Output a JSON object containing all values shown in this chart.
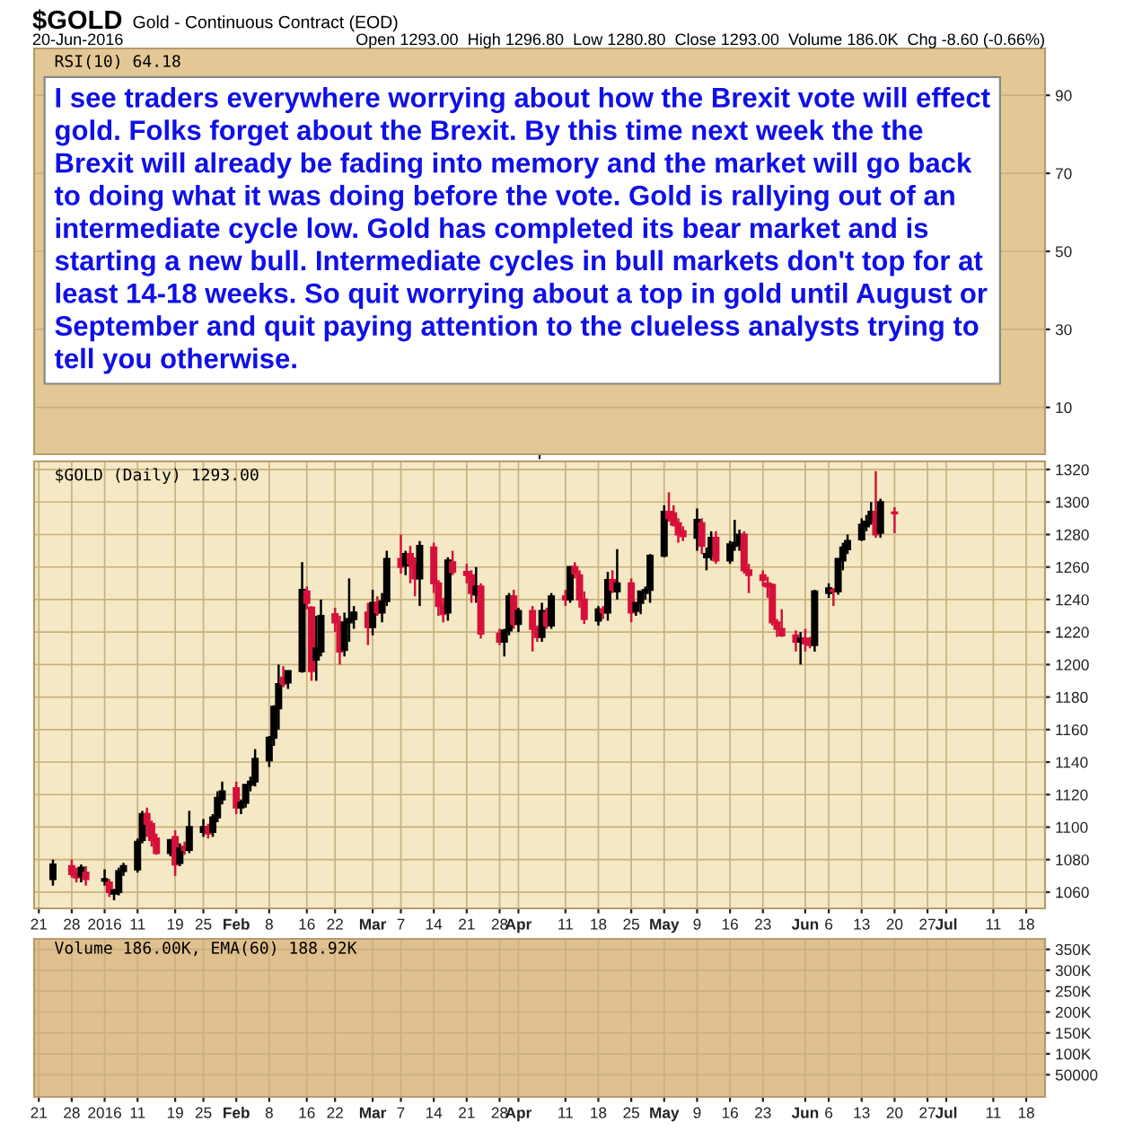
{
  "chart_data": [
    {
      "type": "line",
      "categories": [
        null
      ],
      "values": [
        null
      ],
      "title": "$GOLD",
      "subtitle": "Gold - Continuous Contract (EOD)",
      "annotations": [
        "20-Jun-2016",
        "Open 1293.00  High 1296.80  Low 1280.80  Close 1293.00  Volume 186.0K  Chg -8.60 (-0.66%)",
        "RSI(10) 64.18",
        "I see traders everywhere worrying about how the Brexit vote will effect\ngold. Folks forget about the Brexit. By this time next week the the\nBrexit will already be fading into memory and the market will go back\nto doing what it was doing before the vote. Gold is rallying out of an\nintermediate cycle low. Gold has completed its bear market and is\nstarting a new bull. Intermediate cycles in bull markets don't top for at\nleast 14-18 weeks. So quit worrying about a top in gold until August or\nSeptember and quit paying attention to the clueless analysts trying to\ntell you otherwise."
      ],
      "ylim": [
        -2,
        102
      ],
      "yticks": [
        10,
        30,
        50,
        70,
        90
      ],
      "grid": "y"
    },
    {
      "type": "candlestick",
      "title": "$GOLD (Daily) 1293.00",
      "x": [
        "2015-12-24",
        "2015-12-28",
        "2015-12-29",
        "2015-12-30",
        "2015-12-31",
        "2016-01-04",
        "2016-01-05",
        "2016-01-06",
        "2016-01-07",
        "2016-01-08",
        "2016-01-11",
        "2016-01-12",
        "2016-01-13",
        "2016-01-14",
        "2016-01-15",
        "2016-01-18",
        "2016-01-19",
        "2016-01-20",
        "2016-01-21",
        "2016-01-22",
        "2016-01-25",
        "2016-01-26",
        "2016-01-27",
        "2016-01-28",
        "2016-01-29",
        "2016-02-01",
        "2016-02-02",
        "2016-02-03",
        "2016-02-04",
        "2016-02-05",
        "2016-02-08",
        "2016-02-09",
        "2016-02-10",
        "2016-02-11",
        "2016-02-12",
        "2016-02-15",
        "2016-02-16",
        "2016-02-17",
        "2016-02-18",
        "2016-02-19",
        "2016-02-22",
        "2016-02-23",
        "2016-02-24",
        "2016-02-25",
        "2016-02-26",
        "2016-02-29",
        "2016-03-01",
        "2016-03-02",
        "2016-03-03",
        "2016-03-04",
        "2016-03-07",
        "2016-03-08",
        "2016-03-09",
        "2016-03-10",
        "2016-03-11",
        "2016-03-14",
        "2016-03-15",
        "2016-03-16",
        "2016-03-17",
        "2016-03-18",
        "2016-03-21",
        "2016-03-22",
        "2016-03-23",
        "2016-03-24",
        "2016-03-28",
        "2016-03-29",
        "2016-03-30",
        "2016-03-31",
        "2016-04-01",
        "2016-04-04",
        "2016-04-05",
        "2016-04-06",
        "2016-04-07",
        "2016-04-08",
        "2016-04-11",
        "2016-04-12",
        "2016-04-13",
        "2016-04-14",
        "2016-04-15",
        "2016-04-18",
        "2016-04-19",
        "2016-04-20",
        "2016-04-21",
        "2016-04-22",
        "2016-04-25",
        "2016-04-26",
        "2016-04-27",
        "2016-04-28",
        "2016-04-29",
        "2016-05-02",
        "2016-05-03",
        "2016-05-04",
        "2016-05-05",
        "2016-05-06",
        "2016-05-09",
        "2016-05-10",
        "2016-05-11",
        "2016-05-12",
        "2016-05-13",
        "2016-05-16",
        "2016-05-17",
        "2016-05-18",
        "2016-05-19",
        "2016-05-20",
        "2016-05-23",
        "2016-05-24",
        "2016-05-25",
        "2016-05-26",
        "2016-05-27",
        "2016-05-30",
        "2016-05-31",
        "2016-06-01",
        "2016-06-02",
        "2016-06-03",
        "2016-06-06",
        "2016-06-07",
        "2016-06-08",
        "2016-06-09",
        "2016-06-10",
        "2016-06-13",
        "2016-06-14",
        "2016-06-15",
        "2016-06-16",
        "2016-06-17",
        "2016-06-20"
      ],
      "ohlc": [
        [
          1068,
          1080,
          1064,
          1077
        ],
        [
          1076,
          1080,
          1069,
          1071
        ],
        [
          1071,
          1075,
          1066,
          1069
        ],
        [
          1070,
          1077,
          1066,
          1075
        ],
        [
          1072,
          1076,
          1064,
          1068
        ],
        [
          1067,
          1074,
          1064,
          1068
        ],
        [
          1066,
          1068,
          1057,
          1060
        ],
        [
          1059,
          1062,
          1055,
          1061
        ],
        [
          1060,
          1075,
          1058,
          1073
        ],
        [
          1073,
          1078,
          1070,
          1076
        ],
        [
          1074,
          1093,
          1072,
          1091
        ],
        [
          1092,
          1110,
          1090,
          1108
        ],
        [
          1108,
          1112,
          1094,
          1102
        ],
        [
          1102,
          1104,
          1088,
          1092
        ],
        [
          1093,
          1096,
          1083,
          1084
        ],
        [
          1084,
          1092,
          1082,
          1092
        ],
        [
          1094,
          1098,
          1070,
          1077
        ],
        [
          1078,
          1090,
          1076,
          1087
        ],
        [
          1088,
          1091,
          1083,
          1086
        ],
        [
          1086,
          1110,
          1084,
          1100
        ],
        [
          1097,
          1105,
          1094,
          1100
        ],
        [
          1100,
          1102,
          1093,
          1096
        ],
        [
          1097,
          1108,
          1094,
          1106
        ],
        [
          1106,
          1122,
          1103,
          1118
        ],
        [
          1117,
          1128,
          1114,
          1122
        ],
        [
          1124,
          1128,
          1108,
          1112
        ],
        [
          1112,
          1117,
          1108,
          1115
        ],
        [
          1115,
          1126,
          1112,
          1126
        ],
        [
          1126,
          1131,
          1122,
          1128
        ],
        [
          1128,
          1148,
          1125,
          1142
        ],
        [
          1141,
          1156,
          1137,
          1155
        ],
        [
          1155,
          1175,
          1150,
          1174
        ],
        [
          1173,
          1200,
          1160,
          1188
        ],
        [
          1192,
          1199,
          1186,
          1188
        ],
        [
          1189,
          1196,
          1185,
          1196
        ],
        [
          1196,
          1263,
          1195,
          1246
        ],
        [
          1245,
          1248,
          1234,
          1238
        ],
        [
          1235,
          1236,
          1190,
          1196
        ],
        [
          1203,
          1230,
          1190,
          1210
        ],
        [
          1208,
          1240,
          1205,
          1230
        ],
        [
          1231,
          1235,
          1220,
          1226
        ],
        [
          1226,
          1230,
          1200,
          1208
        ],
        [
          1209,
          1232,
          1205,
          1226
        ],
        [
          1226,
          1253,
          1214,
          1228
        ],
        [
          1228,
          1236,
          1222,
          1232
        ],
        [
          1232,
          1238,
          1212,
          1223
        ],
        [
          1223,
          1246,
          1218,
          1238
        ],
        [
          1238,
          1242,
          1230,
          1232
        ],
        [
          1232,
          1244,
          1226,
          1239
        ],
        [
          1239,
          1270,
          1236,
          1265
        ],
        [
          1265,
          1280,
          1256,
          1260
        ],
        [
          1261,
          1270,
          1255,
          1268
        ],
        [
          1268,
          1273,
          1250,
          1262
        ],
        [
          1262,
          1266,
          1242,
          1253
        ],
        [
          1253,
          1276,
          1236,
          1273
        ],
        [
          1272,
          1275,
          1244,
          1250
        ],
        [
          1250,
          1252,
          1230,
          1236
        ],
        [
          1237,
          1241,
          1226,
          1231
        ],
        [
          1232,
          1266,
          1227,
          1264
        ],
        [
          1263,
          1270,
          1255,
          1257
        ],
        [
          1257,
          1262,
          1250,
          1255
        ],
        [
          1255,
          1258,
          1238,
          1244
        ],
        [
          1243,
          1260,
          1238,
          1248
        ],
        [
          1248,
          1250,
          1216,
          1219
        ],
        [
          1219,
          1222,
          1212,
          1214
        ],
        [
          1214,
          1222,
          1205,
          1221
        ],
        [
          1221,
          1244,
          1218,
          1242
        ],
        [
          1242,
          1246,
          1222,
          1225
        ],
        [
          1225,
          1235,
          1220,
          1233
        ],
        [
          1233,
          1236,
          1208,
          1222
        ],
        [
          1222,
          1224,
          1214,
          1217
        ],
        [
          1217,
          1238,
          1214,
          1233
        ],
        [
          1232,
          1235,
          1222,
          1224
        ],
        [
          1224,
          1244,
          1222,
          1242
        ],
        [
          1242,
          1246,
          1236,
          1240
        ],
        [
          1240,
          1260,
          1238,
          1260
        ],
        [
          1260,
          1263,
          1253,
          1256
        ],
        [
          1255,
          1258,
          1235,
          1240
        ],
        [
          1240,
          1245,
          1225,
          1228
        ],
        [
          1227,
          1236,
          1224,
          1234
        ],
        [
          1234,
          1236,
          1228,
          1232
        ],
        [
          1232,
          1257,
          1227,
          1252
        ],
        [
          1252,
          1258,
          1244,
          1246
        ],
        [
          1245,
          1271,
          1240,
          1250
        ],
        [
          1250,
          1253,
          1226,
          1232
        ],
        [
          1233,
          1238,
          1230,
          1238
        ],
        [
          1238,
          1245,
          1231,
          1245
        ],
        [
          1244,
          1248,
          1240,
          1246
        ],
        [
          1246,
          1268,
          1238,
          1267
        ],
        [
          1267,
          1298,
          1266,
          1294
        ],
        [
          1294,
          1306,
          1288,
          1290
        ],
        [
          1293,
          1298,
          1285,
          1286
        ],
        [
          1287,
          1290,
          1275,
          1280
        ],
        [
          1282,
          1285,
          1276,
          1279
        ],
        [
          1278,
          1296,
          1270,
          1289
        ],
        [
          1287,
          1290,
          1268,
          1273
        ],
        [
          1266,
          1272,
          1258,
          1268
        ],
        [
          1267,
          1282,
          1264,
          1278
        ],
        [
          1278,
          1282,
          1262,
          1264
        ],
        [
          1264,
          1276,
          1262,
          1274
        ],
        [
          1273,
          1289,
          1270,
          1275
        ],
        [
          1274,
          1283,
          1270,
          1280
        ],
        [
          1280,
          1282,
          1256,
          1258
        ],
        [
          1258,
          1262,
          1244,
          1255
        ],
        [
          1255,
          1258,
          1248,
          1252
        ],
        [
          1250,
          1254,
          1241,
          1248
        ],
        [
          1249,
          1250,
          1224,
          1226
        ],
        [
          1226,
          1228,
          1217,
          1222
        ],
        [
          1222,
          1234,
          1217,
          1218
        ],
        [
          1218,
          1221,
          1208,
          1214
        ],
        [
          1214,
          1220,
          1200,
          1216
        ],
        [
          1216,
          1222,
          1208,
          1213
        ],
        [
          1215,
          1217,
          1210,
          1212
        ],
        [
          1212,
          1246,
          1208,
          1245
        ],
        [
          1244,
          1250,
          1241,
          1247
        ],
        [
          1246,
          1247,
          1236,
          1245
        ],
        [
          1245,
          1265,
          1243,
          1265
        ],
        [
          1264,
          1275,
          1258,
          1272
        ],
        [
          1271,
          1280,
          1268,
          1276
        ],
        [
          1277,
          1290,
          1276,
          1286
        ],
        [
          1285,
          1292,
          1282,
          1288
        ],
        [
          1288,
          1300,
          1286,
          1294
        ],
        [
          1294,
          1319,
          1278,
          1280
        ],
        [
          1281,
          1302,
          1278,
          1300
        ],
        [
          1293,
          1296.8,
          1280.8,
          1293
        ]
      ],
      "colors": [
        "#000000",
        "#d6103a",
        "#d6103a",
        "#000000",
        "#d6103a",
        "#000000",
        "#d6103a",
        "#000000",
        "#000000",
        "#000000",
        "#000000",
        "#000000",
        "#d6103a",
        "#d6103a",
        "#d6103a",
        "#000000",
        "#d6103a",
        "#000000",
        "#d6103a",
        "#000000",
        "#000000",
        "#d6103a",
        "#000000",
        "#000000",
        "#000000",
        "#d6103a",
        "#000000",
        "#000000",
        "#000000",
        "#000000",
        "#000000",
        "#000000",
        "#000000",
        "#d6103a",
        "#000000",
        "#000000",
        "#d6103a",
        "#d6103a",
        "#000000",
        "#000000",
        "#d6103a",
        "#d6103a",
        "#000000",
        "#000000",
        "#000000",
        "#d6103a",
        "#000000",
        "#d6103a",
        "#000000",
        "#000000",
        "#d6103a",
        "#000000",
        "#d6103a",
        "#d6103a",
        "#000000",
        "#d6103a",
        "#d6103a",
        "#d6103a",
        "#000000",
        "#d6103a",
        "#d6103a",
        "#d6103a",
        "#000000",
        "#d6103a",
        "#d6103a",
        "#000000",
        "#000000",
        "#d6103a",
        "#000000",
        "#d6103a",
        "#d6103a",
        "#000000",
        "#d6103a",
        "#000000",
        "#d6103a",
        "#000000",
        "#d6103a",
        "#d6103a",
        "#d6103a",
        "#000000",
        "#d6103a",
        "#000000",
        "#d6103a",
        "#000000",
        "#d6103a",
        "#000000",
        "#000000",
        "#000000",
        "#000000",
        "#000000",
        "#d6103a",
        "#d6103a",
        "#d6103a",
        "#d6103a",
        "#000000",
        "#d6103a",
        "#000000",
        "#000000",
        "#d6103a",
        "#000000",
        "#000000",
        "#000000",
        "#d6103a",
        "#d6103a",
        "#d6103a",
        "#d6103a",
        "#d6103a",
        "#d6103a",
        "#d6103a",
        "#d6103a",
        "#000000",
        "#d6103a",
        "#d6103a",
        "#000000",
        "#000000",
        "#d6103a",
        "#000000",
        "#000000",
        "#000000",
        "#000000",
        "#000000",
        "#000000",
        "#d6103a",
        "#000000",
        "#d6103a"
      ],
      "xlim": [
        "2015-12-20",
        "2016-07-22"
      ],
      "xticks": [
        {
          "value": "2015-12-21",
          "label": "21"
        },
        {
          "value": "2015-12-28",
          "label": "28"
        },
        {
          "value": "2016-01-04",
          "label": "2016"
        },
        {
          "value": "2016-01-11",
          "label": "11"
        },
        {
          "value": "2016-01-19",
          "label": "19"
        },
        {
          "value": "2016-01-25",
          "label": "25"
        },
        {
          "value": "2016-02-01",
          "label": "Feb"
        },
        {
          "value": "2016-02-08",
          "label": "8"
        },
        {
          "value": "2016-02-16",
          "label": "16"
        },
        {
          "value": "2016-02-22",
          "label": "22"
        },
        {
          "value": "2016-03-01",
          "label": "Mar"
        },
        {
          "value": "2016-03-07",
          "label": "7"
        },
        {
          "value": "2016-03-14",
          "label": "14"
        },
        {
          "value": "2016-03-21",
          "label": "21"
        },
        {
          "value": "2016-03-28",
          "label": "28"
        },
        {
          "value": "2016-04-01",
          "label": "Apr"
        },
        {
          "value": "2016-04-11",
          "label": "11"
        },
        {
          "value": "2016-04-18",
          "label": "18"
        },
        {
          "value": "2016-04-25",
          "label": "25"
        },
        {
          "value": "2016-05-02",
          "label": "May"
        },
        {
          "value": "2016-05-09",
          "label": "9"
        },
        {
          "value": "2016-05-16",
          "label": "16"
        },
        {
          "value": "2016-05-23",
          "label": "23"
        },
        {
          "value": "2016-06-01",
          "label": "Jun"
        },
        {
          "value": "2016-06-06",
          "label": "6"
        },
        {
          "value": "2016-06-13",
          "label": "13"
        },
        {
          "value": "2016-06-20",
          "label": "20"
        },
        {
          "value": "2016-06-27",
          "label": "27"
        },
        {
          "value": "2016-07-01",
          "label": "Jul"
        },
        {
          "value": "2016-07-11",
          "label": "11"
        },
        {
          "value": "2016-07-18",
          "label": "18"
        }
      ],
      "ylim": [
        1050,
        1325
      ],
      "yticks": [
        1060,
        1080,
        1100,
        1120,
        1140,
        1160,
        1180,
        1200,
        1220,
        1240,
        1260,
        1280,
        1300,
        1320
      ],
      "grid": true
    },
    {
      "type": "bar",
      "title": "Volume 186.00K, EMA(60) 188.92K",
      "xlim": [
        "2015-12-20",
        "2016-07-22"
      ],
      "xticks": [
        {
          "value": "2015-12-21",
          "label": "21"
        },
        {
          "value": "2015-12-28",
          "label": "28"
        },
        {
          "value": "2016-01-04",
          "label": "2016"
        },
        {
          "value": "2016-01-11",
          "label": "11"
        },
        {
          "value": "2016-01-19",
          "label": "19"
        },
        {
          "value": "2016-01-25",
          "label": "25"
        },
        {
          "value": "2016-02-01",
          "label": "Feb"
        },
        {
          "value": "2016-02-08",
          "label": "8"
        },
        {
          "value": "2016-02-16",
          "label": "16"
        },
        {
          "value": "2016-02-22",
          "label": "22"
        },
        {
          "value": "2016-03-01",
          "label": "Mar"
        },
        {
          "value": "2016-03-07",
          "label": "7"
        },
        {
          "value": "2016-03-14",
          "label": "14"
        },
        {
          "value": "2016-03-21",
          "label": "21"
        },
        {
          "value": "2016-03-28",
          "label": "28"
        },
        {
          "value": "2016-04-01",
          "label": "Apr"
        },
        {
          "value": "2016-04-11",
          "label": "11"
        },
        {
          "value": "2016-04-18",
          "label": "18"
        },
        {
          "value": "2016-04-25",
          "label": "25"
        },
        {
          "value": "2016-05-02",
          "label": "May"
        },
        {
          "value": "2016-05-09",
          "label": "9"
        },
        {
          "value": "2016-05-16",
          "label": "16"
        },
        {
          "value": "2016-05-23",
          "label": "23"
        },
        {
          "value": "2016-06-01",
          "label": "Jun"
        },
        {
          "value": "2016-06-06",
          "label": "6"
        },
        {
          "value": "2016-06-13",
          "label": "13"
        },
        {
          "value": "2016-06-20",
          "label": "20"
        },
        {
          "value": "2016-06-27",
          "label": "27"
        },
        {
          "value": "2016-07-01",
          "label": "Jul"
        },
        {
          "value": "2016-07-11",
          "label": "11"
        },
        {
          "value": "2016-07-18",
          "label": "18"
        }
      ],
      "ylim": [
        -3000,
        375000
      ],
      "yticks": [
        50000,
        {
          "value": 100000,
          "label": "100K"
        },
        {
          "value": 150000,
          "label": "150K"
        },
        {
          "value": 200000,
          "label": "200K"
        },
        {
          "value": 250000,
          "label": "250K"
        },
        {
          "value": 300000,
          "label": "300K"
        },
        {
          "value": 350000,
          "label": "350K"
        }
      ],
      "grid": true
    }
  ]
}
